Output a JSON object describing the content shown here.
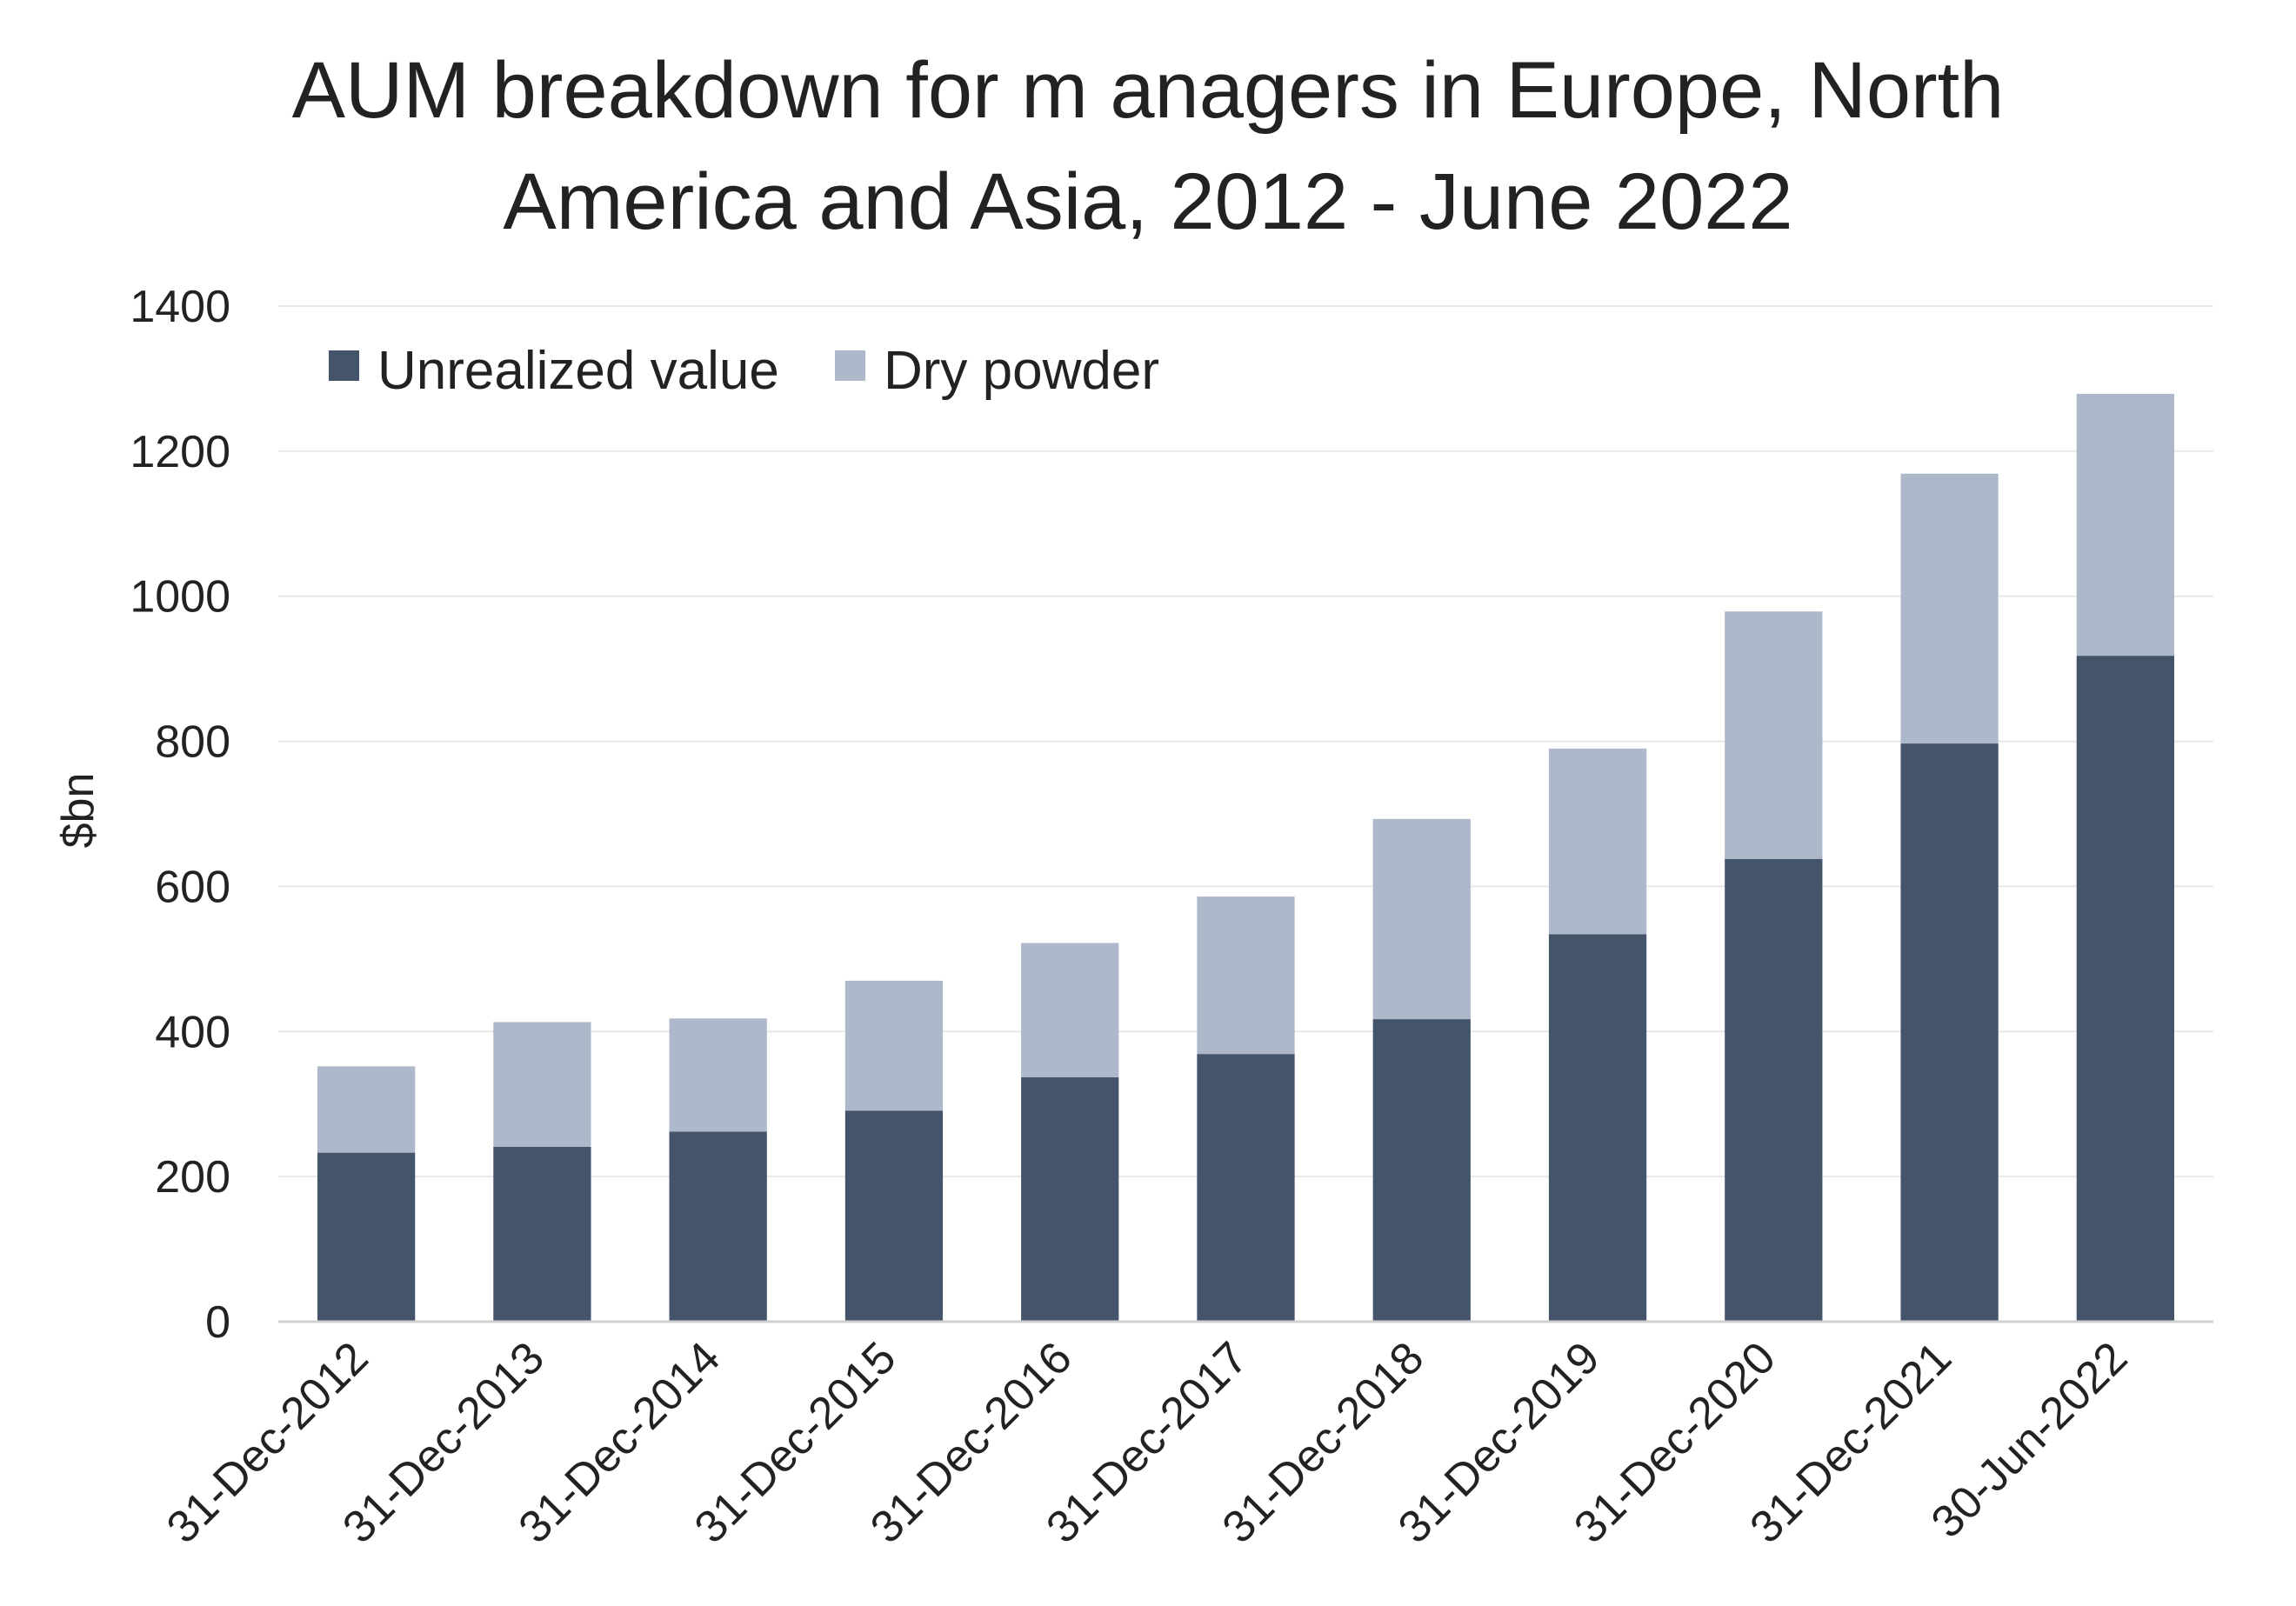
{
  "chart_data": {
    "type": "bar",
    "stacked": true,
    "title_lines": [
      "AUM breakdown for m anagers in Europe, North",
      "America and Asia, 2012 - June 2022"
    ],
    "xlabel": "",
    "ylabel": "$bn",
    "ylim": [
      0,
      1400
    ],
    "yticks": [
      0,
      200,
      400,
      600,
      800,
      1000,
      1200,
      1400
    ],
    "grid": true,
    "legend_position": "top-left",
    "categories": [
      "31-Dec-2012",
      "31-Dec-2013",
      "31-Dec-2014",
      "31-Dec-2015",
      "31-Dec-2016",
      "31-Dec-2017",
      "31-Dec-2018",
      "31-Dec-2019",
      "31-Dec-2020",
      "31-Dec-2021",
      "30-Jun-2022"
    ],
    "series": [
      {
        "name": "Unrealized value",
        "color": "#44546a",
        "values": [
          233,
          241,
          262,
          291,
          337,
          369,
          417,
          534,
          638,
          797,
          918
        ]
      },
      {
        "name": "Dry powder",
        "color": "#adb9ca",
        "values": [
          119,
          172,
          156,
          179,
          185,
          217,
          276,
          256,
          341,
          372,
          361
        ]
      }
    ]
  }
}
